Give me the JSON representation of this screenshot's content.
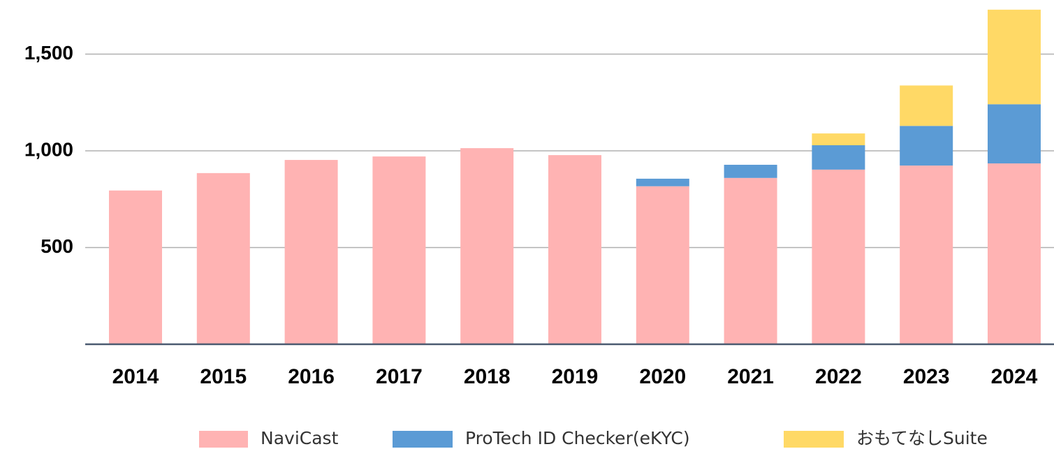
{
  "chart_data": {
    "type": "stacked-bar",
    "categories": [
      "2014",
      "2015",
      "2016",
      "2017",
      "2018",
      "2019",
      "2020",
      "2021",
      "2022",
      "2023",
      "2024"
    ],
    "series": [
      {
        "name": "NaviCast",
        "color": "#ffb3b3",
        "values": [
          795,
          885,
          953,
          971,
          1014,
          978,
          817,
          860,
          903,
          924,
          935
        ]
      },
      {
        "name": "ProTech ID Checker(eKYC)",
        "color": "#5b9bd5",
        "values": [
          null,
          null,
          null,
          null,
          null,
          null,
          39,
          68,
          126,
          205,
          306
        ]
      },
      {
        "name": "おもてなしSuite",
        "color": "#ffd966",
        "values": [
          null,
          null,
          null,
          null,
          null,
          null,
          null,
          null,
          61,
          209,
          489
        ]
      }
    ],
    "ylim": [
      0,
      1780
    ],
    "yticks": [
      500,
      {
        "value": 1000,
        "label": "1,000"
      },
      {
        "value": 1500,
        "label": "1,500"
      }
    ],
    "grid": true,
    "legend": "bottom"
  }
}
